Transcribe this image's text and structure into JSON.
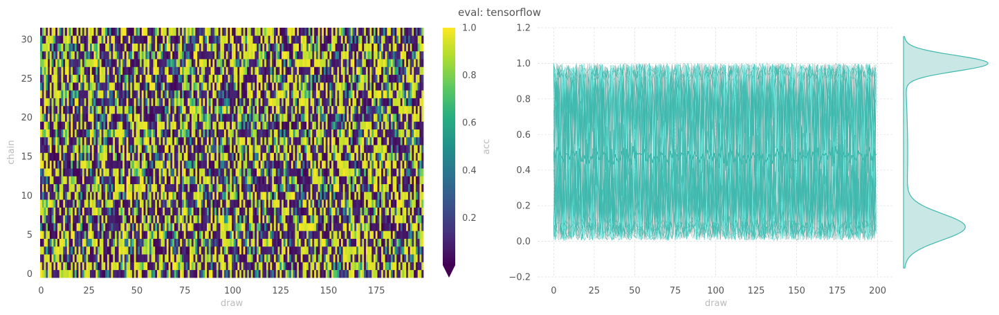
{
  "title": "eval: tensorflow",
  "colors": {
    "trace": "#3fb8ad",
    "kde_fill": "#c9e8e5",
    "tick_text": "#555555",
    "label_text": "#bbbbbb",
    "grid": "#e3e3e3"
  },
  "chart_data": [
    {
      "type": "heatmap",
      "colormap": "viridis",
      "xlabel": "draw",
      "ylabel": "chain",
      "x_range": [
        0,
        199
      ],
      "y_range": [
        0,
        31
      ],
      "xticks": [
        "0",
        "25",
        "50",
        "75",
        "100",
        "125",
        "150",
        "175"
      ],
      "yticks": [
        "0",
        "5",
        "10",
        "15",
        "20",
        "25",
        "30"
      ],
      "n_draws": 200,
      "n_chains": 32,
      "value_description": "per-chain per-draw acceptance values in [0,1], largely bimodal near 0 and 1",
      "colorbar": {
        "label": "acc",
        "range": [
          0,
          1.0
        ],
        "ticks": [
          "0.2",
          "0.4",
          "0.6",
          "0.8",
          "1.0"
        ],
        "extend": "min"
      }
    },
    {
      "type": "line",
      "xlabel": "draw",
      "ylabel": "",
      "xlim": [
        -10,
        210
      ],
      "ylim": [
        -0.2,
        1.2
      ],
      "xticks": [
        "0",
        "25",
        "50",
        "75",
        "100",
        "125",
        "150",
        "175",
        "200"
      ],
      "yticks": [
        "−0.2",
        "0.0",
        "0.2",
        "0.4",
        "0.6",
        "0.8",
        "1.0",
        "1.2"
      ],
      "grid": true,
      "series_description": "32 chain traces overlaid (values between ~0.01 and 1.0) plus a mean line near 0.48",
      "mean_level": 0.48
    },
    {
      "type": "area",
      "orientation": "vertical",
      "description": "marginal KDE of acceptance values",
      "mode_values": [
        1.0,
        0.08
      ],
      "y_range": [
        -0.15,
        1.15
      ]
    }
  ]
}
